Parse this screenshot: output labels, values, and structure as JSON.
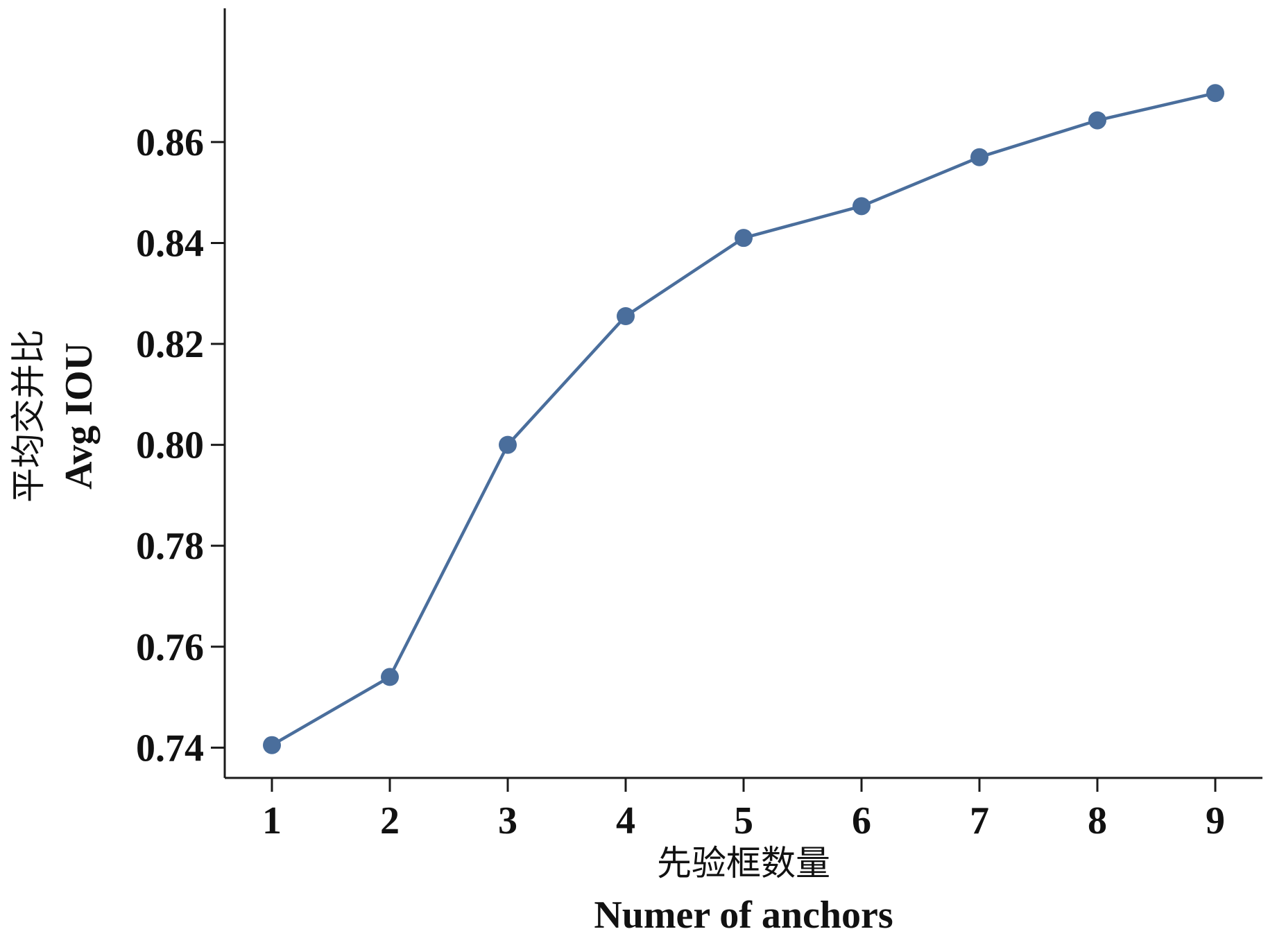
{
  "chart_data": {
    "type": "line",
    "title": "",
    "xlabel_cn": "先验框数量",
    "xlabel_en": "Numer of anchors",
    "ylabel_cn": "平均交并比",
    "ylabel_en": "Avg IOU",
    "x": [
      1,
      2,
      3,
      4,
      5,
      6,
      7,
      8,
      9
    ],
    "series": [
      {
        "values": [
          0.7405,
          0.754,
          0.8,
          0.8255,
          0.841,
          0.8473,
          0.857,
          0.8643,
          0.8697
        ]
      }
    ],
    "xlim": [
      0.6,
      9.4
    ],
    "ylim": [
      0.734,
      0.8865
    ],
    "xticks": [
      1,
      2,
      3,
      4,
      5,
      6,
      7,
      8,
      9
    ],
    "yticks": [
      0.74,
      0.76,
      0.78,
      0.8,
      0.82,
      0.84,
      0.86
    ],
    "ytick_labels": [
      "0.74",
      "0.76",
      "0.78",
      "0.80",
      "0.82",
      "0.84",
      "0.86"
    ],
    "grid": false,
    "legend": "none",
    "colors": {
      "line": "#4a6e9c",
      "marker": "#4a6e9c",
      "axis": "#1a1a1a"
    }
  }
}
